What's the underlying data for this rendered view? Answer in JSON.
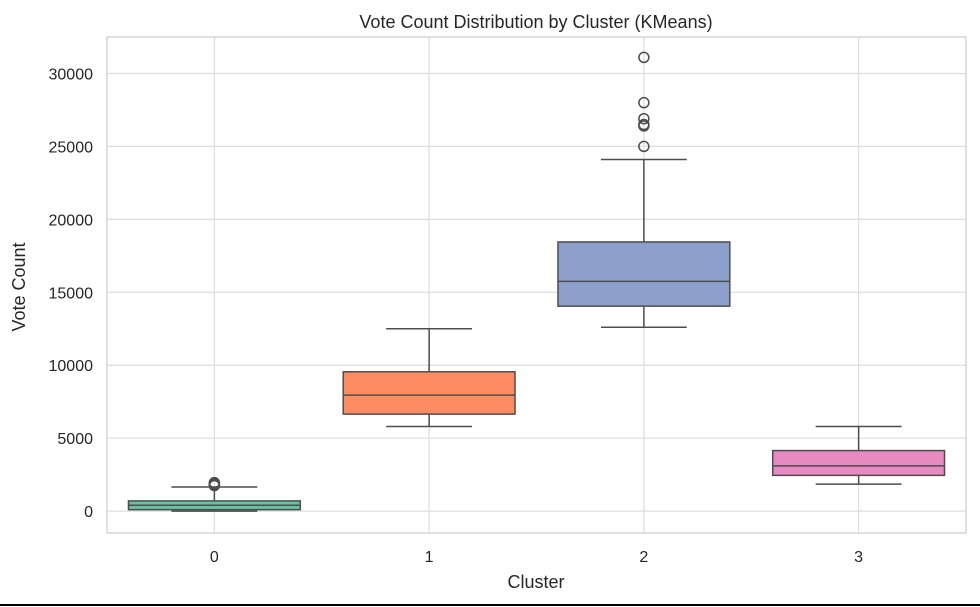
{
  "chart_data": {
    "type": "box",
    "title": "Vote Count Distribution by Cluster (KMeans)",
    "xlabel": "Cluster",
    "ylabel": "Vote Count",
    "categories": [
      "0",
      "1",
      "2",
      "3"
    ],
    "ylim": [
      -1500,
      32500
    ],
    "yticks": [
      0,
      5000,
      10000,
      15000,
      20000,
      25000,
      30000
    ],
    "grid": true,
    "boxes": [
      {
        "category": "0",
        "whisker_low": 0,
        "q1": 100,
        "median": 400,
        "q3": 700,
        "whisker_high": 1650,
        "outliers": [
          1750,
          1800,
          1850,
          1900,
          1950
        ],
        "color": "#66c2a5"
      },
      {
        "category": "1",
        "whisker_low": 5800,
        "q1": 6650,
        "median": 7950,
        "q3": 9550,
        "whisker_high": 12500,
        "outliers": [],
        "color": "#fc8d62"
      },
      {
        "category": "2",
        "whisker_low": 12600,
        "q1": 14050,
        "median": 15750,
        "q3": 18450,
        "whisker_high": 24100,
        "outliers": [
          25000,
          26400,
          26500,
          26900,
          28000,
          31100
        ],
        "color": "#8da0cb"
      },
      {
        "category": "3",
        "whisker_low": 1850,
        "q1": 2450,
        "median": 3100,
        "q3": 4150,
        "whisker_high": 5800,
        "outliers": [],
        "color": "#e78ac3"
      }
    ],
    "colors": {
      "grid": "#dddddd",
      "frame": "#cccccc",
      "line": "#4d4d4d",
      "text": "#262626"
    }
  }
}
